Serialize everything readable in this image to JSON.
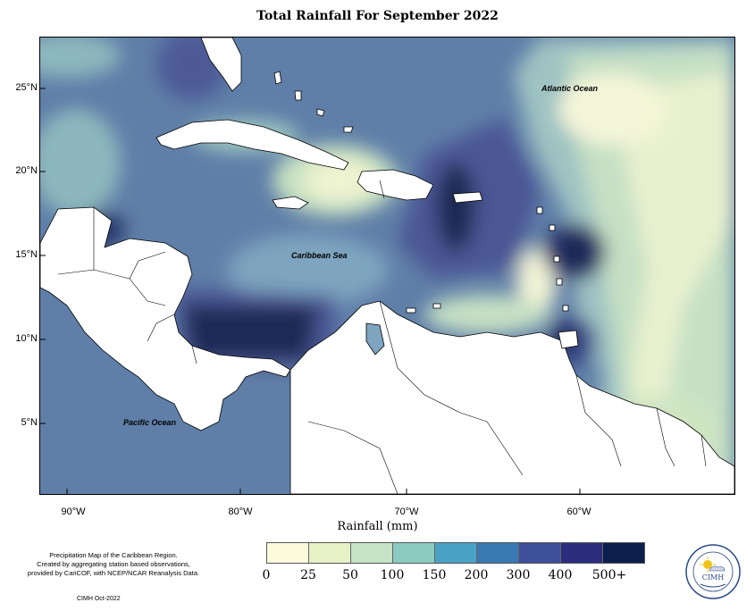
{
  "title": "Total Rainfall For September 2022",
  "map": {
    "lon_labels": [
      "90°W",
      "80°W",
      "70°W",
      "60°W"
    ],
    "lat_labels": [
      "25°N",
      "20°N",
      "15°N",
      "10°N",
      "5°N"
    ],
    "region_labels": {
      "atlantic": "Atlantic Ocean",
      "caribbean": "Caribbean Sea",
      "pacific": "Pacific Ocean"
    }
  },
  "legend": {
    "title": "Rainfall (mm)",
    "ticks": [
      "0",
      "25",
      "50",
      "100",
      "150",
      "200",
      "300",
      "400",
      "500+"
    ],
    "colors": [
      "#fbfbdc",
      "#e6f1c6",
      "#c6e3c5",
      "#8ccbc1",
      "#4aa3c7",
      "#3a79b2",
      "#3c4f98",
      "#2c2d7d",
      "#0b1e4e"
    ]
  },
  "footnote": {
    "line1": "Precipitation Map of the Caribbean Region.",
    "line2": "Created by aggregating station based observations,",
    "line3": "provided by CariCOF, with NCEP/NCAR Reanalysis Data."
  },
  "credit": "CIMH Oct-2022",
  "logo": {
    "text": "CIMH",
    "icon": "cimh-logo-icon"
  }
}
